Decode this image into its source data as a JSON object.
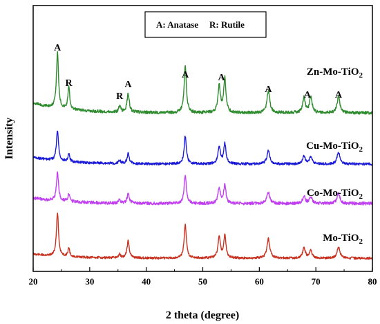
{
  "chart_data": {
    "type": "line",
    "xlabel": "2 theta (degree)",
    "ylabel": "Intensity",
    "xlim": [
      20,
      80
    ],
    "grid": false,
    "legend_placement": "top-center",
    "x_ticks": [
      20,
      30,
      40,
      50,
      60,
      70,
      80
    ],
    "legend": {
      "items": [
        "A: Anatase",
        "R: Rutile"
      ]
    },
    "peaks": [
      {
        "x": 24.3,
        "label": "A"
      },
      {
        "x": 26.3,
        "label": "R"
      },
      {
        "x": 35.3,
        "label": "R"
      },
      {
        "x": 36.8,
        "label": "A"
      },
      {
        "x": 46.9,
        "label": "A"
      },
      {
        "x": 53.3,
        "label": "A"
      },
      {
        "x": 61.6,
        "label": "A"
      },
      {
        "x": 68.5,
        "label": "A"
      },
      {
        "x": 74.0,
        "label": "A"
      }
    ],
    "peak_positions": [
      24.3,
      26.3,
      35.3,
      36.8,
      46.9,
      52.9,
      53.9,
      61.6,
      67.9,
      69.1,
      74.0
    ],
    "series": [
      {
        "name": "Zn-Mo-TiO2",
        "label_main": "Zn-Mo-TiO",
        "label_sub": "2",
        "color": "#2e8b2e",
        "intensities": [
          0.89,
          0.36,
          0.1,
          0.3,
          0.74,
          0.43,
          0.55,
          0.35,
          0.24,
          0.24,
          0.26
        ]
      },
      {
        "name": "Cu-Mo-TiO2",
        "label_main": "Cu-Mo-TiO",
        "label_sub": "2",
        "color": "#1c1cd8",
        "intensities": [
          0.67,
          0.16,
          0.08,
          0.22,
          0.62,
          0.38,
          0.45,
          0.3,
          0.17,
          0.17,
          0.26
        ]
      },
      {
        "name": "Co-Mo-TiO2",
        "label_main": "Co-Mo-TiO",
        "label_sub": "2",
        "color": "#c040f0",
        "intensities": [
          0.68,
          0.17,
          0.08,
          0.22,
          0.68,
          0.37,
          0.44,
          0.27,
          0.17,
          0.17,
          0.25
        ]
      },
      {
        "name": "Mo-TiO2",
        "label_main": "Mo-TiO",
        "label_sub": "2",
        "color": "#c83220",
        "intensities": [
          1.0,
          0.19,
          0.08,
          0.39,
          0.77,
          0.48,
          0.51,
          0.45,
          0.24,
          0.17,
          0.26
        ]
      }
    ]
  }
}
